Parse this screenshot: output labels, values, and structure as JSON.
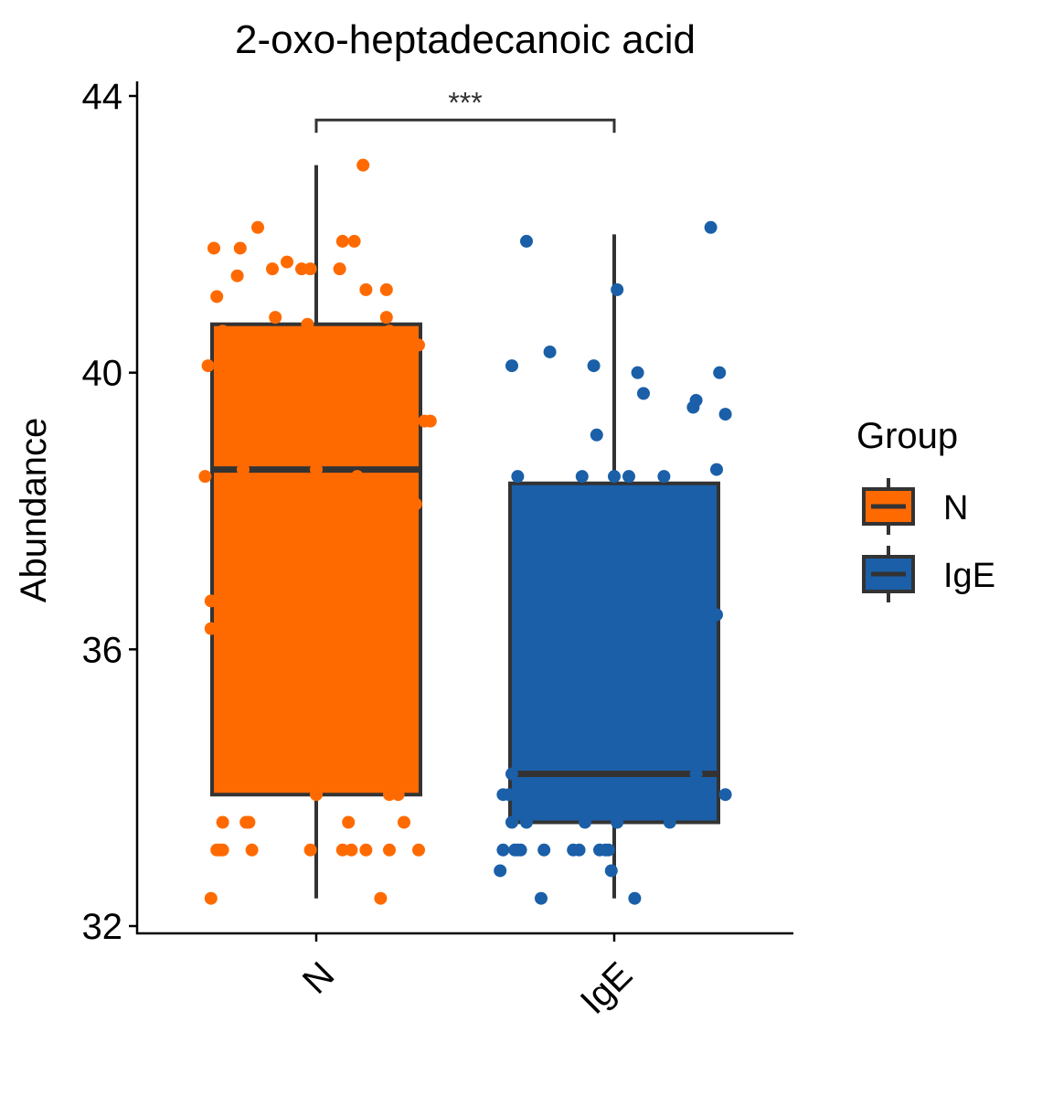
{
  "chart_data": {
    "type": "box",
    "title": "2-oxo-heptadecanoic acid",
    "xlabel": "",
    "ylabel": "Abundance",
    "ylim": [
      32,
      44
    ],
    "yticks": [
      32,
      36,
      40,
      44
    ],
    "categories": [
      "N",
      "IgE"
    ],
    "colors": {
      "N": "#FF6A00",
      "IgE": "#1A5FA8",
      "outline": "#333333"
    },
    "boxes": [
      {
        "group": "N",
        "whisker_low": 32.4,
        "q1": 33.9,
        "median": 38.6,
        "q3": 40.7,
        "whisker_high": 43.0
      },
      {
        "group": "IgE",
        "whisker_low": 32.4,
        "q1": 33.5,
        "median": 34.2,
        "q3": 38.4,
        "whisker_high": 42.0
      }
    ],
    "significance": {
      "between": [
        "N",
        "IgE"
      ],
      "label": "***",
      "y": 43.6
    },
    "points": {
      "N": [
        {
          "dx": -0.36,
          "y": 32.4
        },
        {
          "dx": 0.22,
          "y": 32.4
        },
        {
          "dx": -0.34,
          "y": 33.1
        },
        {
          "dx": -0.33,
          "y": 33.1
        },
        {
          "dx": -0.32,
          "y": 33.1
        },
        {
          "dx": -0.22,
          "y": 33.1
        },
        {
          "dx": -0.02,
          "y": 33.1
        },
        {
          "dx": 0.09,
          "y": 33.1
        },
        {
          "dx": 0.12,
          "y": 33.1
        },
        {
          "dx": 0.17,
          "y": 33.1
        },
        {
          "dx": 0.25,
          "y": 33.1
        },
        {
          "dx": 0.35,
          "y": 33.1
        },
        {
          "dx": -0.32,
          "y": 33.5
        },
        {
          "dx": -0.24,
          "y": 33.5
        },
        {
          "dx": -0.23,
          "y": 33.5
        },
        {
          "dx": 0.11,
          "y": 33.5
        },
        {
          "dx": 0.3,
          "y": 33.5
        },
        {
          "dx": 0.0,
          "y": 33.9
        },
        {
          "dx": 0.25,
          "y": 33.9
        },
        {
          "dx": 0.28,
          "y": 33.9
        },
        {
          "dx": -0.36,
          "y": 36.3
        },
        {
          "dx": -0.36,
          "y": 36.7
        },
        {
          "dx": 0.34,
          "y": 38.1
        },
        {
          "dx": -0.38,
          "y": 38.5
        },
        {
          "dx": 0.14,
          "y": 38.5
        },
        {
          "dx": -0.25,
          "y": 38.6
        },
        {
          "dx": 0.0,
          "y": 38.6
        },
        {
          "dx": 0.0,
          "y": 38.5
        },
        {
          "dx": 0.37,
          "y": 39.3
        },
        {
          "dx": 0.39,
          "y": 39.3
        },
        {
          "dx": -0.37,
          "y": 40.1
        },
        {
          "dx": 0.35,
          "y": 40.4
        },
        {
          "dx": -0.32,
          "y": 40.6
        },
        {
          "dx": 0.25,
          "y": 40.6
        },
        {
          "dx": -0.03,
          "y": 40.7
        },
        {
          "dx": 0.24,
          "y": 40.8
        },
        {
          "dx": -0.14,
          "y": 40.8
        },
        {
          "dx": -0.34,
          "y": 41.1
        },
        {
          "dx": 0.24,
          "y": 41.2
        },
        {
          "dx": 0.17,
          "y": 41.2
        },
        {
          "dx": -0.27,
          "y": 41.4
        },
        {
          "dx": -0.02,
          "y": 41.5
        },
        {
          "dx": -0.05,
          "y": 41.5
        },
        {
          "dx": 0.08,
          "y": 41.5
        },
        {
          "dx": -0.15,
          "y": 41.5
        },
        {
          "dx": -0.1,
          "y": 41.6
        },
        {
          "dx": -0.35,
          "y": 41.8
        },
        {
          "dx": -0.26,
          "y": 41.8
        },
        {
          "dx": 0.09,
          "y": 41.9
        },
        {
          "dx": 0.13,
          "y": 41.9
        },
        {
          "dx": -0.2,
          "y": 42.1
        },
        {
          "dx": 0.16,
          "y": 43.0
        }
      ],
      "IgE": [
        {
          "dx": -0.25,
          "y": 32.4
        },
        {
          "dx": 0.07,
          "y": 32.4
        },
        {
          "dx": -0.39,
          "y": 32.8
        },
        {
          "dx": -0.01,
          "y": 32.8
        },
        {
          "dx": -0.38,
          "y": 33.1
        },
        {
          "dx": -0.34,
          "y": 33.1
        },
        {
          "dx": -0.33,
          "y": 33.1
        },
        {
          "dx": -0.32,
          "y": 33.1
        },
        {
          "dx": -0.24,
          "y": 33.1
        },
        {
          "dx": -0.14,
          "y": 33.1
        },
        {
          "dx": -0.12,
          "y": 33.1
        },
        {
          "dx": -0.05,
          "y": 33.1
        },
        {
          "dx": -0.03,
          "y": 33.1
        },
        {
          "dx": -0.02,
          "y": 33.1
        },
        {
          "dx": -0.35,
          "y": 33.5
        },
        {
          "dx": -0.3,
          "y": 33.5
        },
        {
          "dx": -0.1,
          "y": 33.5
        },
        {
          "dx": 0.01,
          "y": 33.5
        },
        {
          "dx": 0.19,
          "y": 33.5
        },
        {
          "dx": -0.38,
          "y": 33.9
        },
        {
          "dx": -0.36,
          "y": 33.9
        },
        {
          "dx": 0.38,
          "y": 33.9
        },
        {
          "dx": -0.35,
          "y": 34.2
        },
        {
          "dx": 0.28,
          "y": 34.2
        },
        {
          "dx": 0.35,
          "y": 36.5
        },
        {
          "dx": -0.33,
          "y": 38.5
        },
        {
          "dx": -0.11,
          "y": 38.5
        },
        {
          "dx": 0.0,
          "y": 38.5
        },
        {
          "dx": 0.05,
          "y": 38.5
        },
        {
          "dx": 0.17,
          "y": 38.5
        },
        {
          "dx": 0.35,
          "y": 38.6
        },
        {
          "dx": -0.06,
          "y": 39.1
        },
        {
          "dx": 0.27,
          "y": 39.5
        },
        {
          "dx": 0.38,
          "y": 39.4
        },
        {
          "dx": 0.28,
          "y": 39.6
        },
        {
          "dx": 0.1,
          "y": 39.7
        },
        {
          "dx": 0.08,
          "y": 40.0
        },
        {
          "dx": 0.36,
          "y": 40.0
        },
        {
          "dx": -0.35,
          "y": 40.1
        },
        {
          "dx": -0.07,
          "y": 40.1
        },
        {
          "dx": -0.22,
          "y": 40.3
        },
        {
          "dx": 0.01,
          "y": 41.2
        },
        {
          "dx": -0.3,
          "y": 41.9
        },
        {
          "dx": 0.33,
          "y": 42.1
        }
      ]
    },
    "legend": {
      "title": "Group",
      "placement": "right",
      "items": [
        {
          "label": "N",
          "color": "#FF6A00"
        },
        {
          "label": "IgE",
          "color": "#1A5FA8"
        }
      ]
    }
  }
}
